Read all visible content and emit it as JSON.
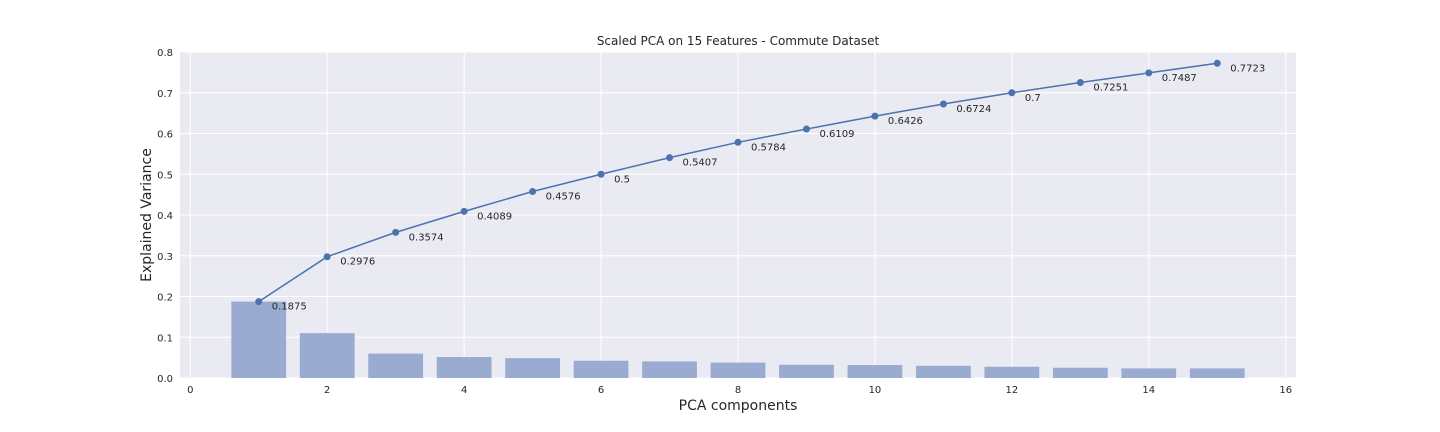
{
  "chart_data": {
    "type": "bar",
    "title": "Scaled PCA on 15 Features - Commute Dataset",
    "xlabel": "PCA components",
    "ylabel": "Explained Variance",
    "xlim": [
      -0.15,
      16.15
    ],
    "ylim": [
      0,
      0.8
    ],
    "xticks": [
      0,
      2,
      4,
      6,
      8,
      10,
      12,
      14,
      16
    ],
    "yticks": [
      0.0,
      0.1,
      0.2,
      0.3,
      0.4,
      0.5,
      0.6,
      0.7,
      0.8
    ],
    "ytick_labels": [
      "0.0",
      "0.1",
      "0.2",
      "0.3",
      "0.4",
      "0.5",
      "0.6",
      "0.7",
      "0.8"
    ],
    "grid": true,
    "x": [
      1,
      2,
      3,
      4,
      5,
      6,
      7,
      8,
      9,
      10,
      11,
      12,
      13,
      14,
      15
    ],
    "series": [
      {
        "type": "bar",
        "values": [
          0.1875,
          0.1101,
          0.0598,
          0.0515,
          0.0487,
          0.0424,
          0.0407,
          0.0377,
          0.0325,
          0.0317,
          0.0298,
          0.0276,
          0.0251,
          0.0236,
          0.0236
        ]
      },
      {
        "type": "line",
        "values": [
          0.1875,
          0.2976,
          0.3574,
          0.4089,
          0.4576,
          0.5,
          0.5407,
          0.5784,
          0.6109,
          0.6426,
          0.6724,
          0.7,
          0.7251,
          0.7487,
          0.7723
        ],
        "labels": [
          "0.1875",
          "0.2976",
          "0.3574",
          "0.4089",
          "0.4576",
          "0.5",
          "0.5407",
          "0.5784",
          "0.6109",
          "0.6426",
          "0.6724",
          "0.7",
          "0.7251",
          "0.7487",
          "0.7723"
        ]
      }
    ],
    "colors": {
      "plot_bg": "#eaeaf2",
      "grid": "#ffffff",
      "bar": "#9aabd2",
      "line": "#4c72b0"
    }
  }
}
